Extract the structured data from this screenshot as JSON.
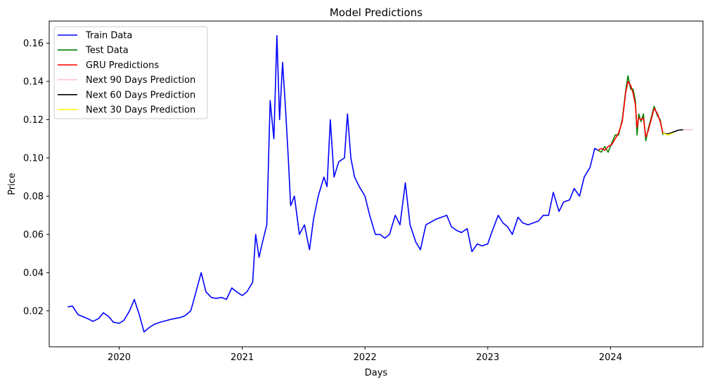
{
  "chart_data": {
    "type": "line",
    "title": "Model Predictions",
    "xlabel": "Days",
    "ylabel": "Price",
    "x_type": "date",
    "xlim": [
      "2019-06-07",
      "2024-10-02"
    ],
    "ylim": [
      0.0012,
      0.1716
    ],
    "x_ticks": [
      "2020-01-01",
      "2021-01-01",
      "2022-01-01",
      "2023-01-01",
      "2024-01-01"
    ],
    "x_tick_labels": [
      "2020",
      "2021",
      "2022",
      "2023",
      "2024"
    ],
    "y_ticks": [
      0.02,
      0.04,
      0.06,
      0.08,
      0.1,
      0.12,
      0.14,
      0.16
    ],
    "y_tick_labels": [
      "0.02",
      "0.04",
      "0.06",
      "0.08",
      "0.10",
      "0.12",
      "0.14",
      "0.16"
    ],
    "legend_position": "top-left",
    "grid": false,
    "series": [
      {
        "name": "Train Data",
        "color": "#0000ff",
        "points": [
          [
            "2019-08-01",
            0.0221
          ],
          [
            "2019-08-15",
            0.0225
          ],
          [
            "2019-09-01",
            0.018
          ],
          [
            "2019-09-15",
            0.017
          ],
          [
            "2019-10-01",
            0.0158
          ],
          [
            "2019-10-15",
            0.0145
          ],
          [
            "2019-11-01",
            0.016
          ],
          [
            "2019-11-15",
            0.019
          ],
          [
            "2019-12-01",
            0.017
          ],
          [
            "2019-12-15",
            0.014
          ],
          [
            "2020-01-01",
            0.0135
          ],
          [
            "2020-01-15",
            0.015
          ],
          [
            "2020-02-01",
            0.02
          ],
          [
            "2020-02-15",
            0.026
          ],
          [
            "2020-03-01",
            0.018
          ],
          [
            "2020-03-15",
            0.009
          ],
          [
            "2020-04-01",
            0.0115
          ],
          [
            "2020-04-15",
            0.013
          ],
          [
            "2020-05-01",
            0.014
          ],
          [
            "2020-06-01",
            0.0155
          ],
          [
            "2020-06-15",
            0.016
          ],
          [
            "2020-07-01",
            0.0165
          ],
          [
            "2020-07-15",
            0.0175
          ],
          [
            "2020-08-01",
            0.02
          ],
          [
            "2020-08-15",
            0.029
          ],
          [
            "2020-09-01",
            0.04
          ],
          [
            "2020-09-15",
            0.03
          ],
          [
            "2020-10-01",
            0.027
          ],
          [
            "2020-10-15",
            0.0265
          ],
          [
            "2020-11-01",
            0.027
          ],
          [
            "2020-11-15",
            0.026
          ],
          [
            "2020-12-01",
            0.032
          ],
          [
            "2020-12-15",
            0.03
          ],
          [
            "2021-01-01",
            0.028
          ],
          [
            "2021-01-15",
            0.03
          ],
          [
            "2021-02-01",
            0.035
          ],
          [
            "2021-02-10",
            0.06
          ],
          [
            "2021-02-20",
            0.048
          ],
          [
            "2021-03-01",
            0.055
          ],
          [
            "2021-03-15",
            0.065
          ],
          [
            "2021-03-25",
            0.13
          ],
          [
            "2021-04-05",
            0.11
          ],
          [
            "2021-04-14",
            0.164
          ],
          [
            "2021-04-22",
            0.12
          ],
          [
            "2021-05-01",
            0.15
          ],
          [
            "2021-05-10",
            0.125
          ],
          [
            "2021-05-18",
            0.1
          ],
          [
            "2021-05-25",
            0.075
          ],
          [
            "2021-06-05",
            0.08
          ],
          [
            "2021-06-20",
            0.06
          ],
          [
            "2021-07-05",
            0.065
          ],
          [
            "2021-07-20",
            0.052
          ],
          [
            "2021-08-01",
            0.068
          ],
          [
            "2021-08-15",
            0.08
          ],
          [
            "2021-09-01",
            0.09
          ],
          [
            "2021-09-10",
            0.085
          ],
          [
            "2021-09-20",
            0.12
          ],
          [
            "2021-10-01",
            0.09
          ],
          [
            "2021-10-15",
            0.098
          ],
          [
            "2021-11-01",
            0.1
          ],
          [
            "2021-11-10",
            0.123
          ],
          [
            "2021-11-20",
            0.1
          ],
          [
            "2021-12-01",
            0.09
          ],
          [
            "2021-12-15",
            0.085
          ],
          [
            "2022-01-01",
            0.08
          ],
          [
            "2022-01-15",
            0.07
          ],
          [
            "2022-02-01",
            0.06
          ],
          [
            "2022-02-15",
            0.06
          ],
          [
            "2022-03-01",
            0.058
          ],
          [
            "2022-03-15",
            0.06
          ],
          [
            "2022-04-01",
            0.07
          ],
          [
            "2022-04-15",
            0.065
          ],
          [
            "2022-05-01",
            0.087
          ],
          [
            "2022-05-15",
            0.065
          ],
          [
            "2022-06-01",
            0.056
          ],
          [
            "2022-06-15",
            0.052
          ],
          [
            "2022-07-01",
            0.065
          ],
          [
            "2022-08-01",
            0.068
          ],
          [
            "2022-09-01",
            0.07
          ],
          [
            "2022-09-15",
            0.064
          ],
          [
            "2022-10-01",
            0.062
          ],
          [
            "2022-10-15",
            0.061
          ],
          [
            "2022-11-01",
            0.063
          ],
          [
            "2022-11-15",
            0.051
          ],
          [
            "2022-12-01",
            0.055
          ],
          [
            "2022-12-15",
            0.054
          ],
          [
            "2023-01-01",
            0.055
          ],
          [
            "2023-01-15",
            0.062
          ],
          [
            "2023-02-01",
            0.07
          ],
          [
            "2023-02-15",
            0.066
          ],
          [
            "2023-03-01",
            0.064
          ],
          [
            "2023-03-15",
            0.06
          ],
          [
            "2023-04-01",
            0.069
          ],
          [
            "2023-04-15",
            0.066
          ],
          [
            "2023-05-01",
            0.065
          ],
          [
            "2023-06-01",
            0.067
          ],
          [
            "2023-06-15",
            0.07
          ],
          [
            "2023-07-01",
            0.07
          ],
          [
            "2023-07-15",
            0.082
          ],
          [
            "2023-08-01",
            0.072
          ],
          [
            "2023-08-15",
            0.077
          ],
          [
            "2023-09-01",
            0.078
          ],
          [
            "2023-09-15",
            0.084
          ],
          [
            "2023-10-01",
            0.08
          ],
          [
            "2023-10-15",
            0.09
          ],
          [
            "2023-11-01",
            0.095
          ],
          [
            "2023-11-15",
            0.105
          ],
          [
            "2023-11-25",
            0.104
          ]
        ]
      },
      {
        "name": "Test Data",
        "color": "#008000",
        "points": [
          [
            "2023-11-25",
            0.104
          ],
          [
            "2023-12-05",
            0.103
          ],
          [
            "2023-12-15",
            0.106
          ],
          [
            "2023-12-25",
            0.103
          ],
          [
            "2024-01-05",
            0.108
          ],
          [
            "2024-01-15",
            0.112
          ],
          [
            "2024-01-25",
            0.112
          ],
          [
            "2024-02-05",
            0.12
          ],
          [
            "2024-02-15",
            0.135
          ],
          [
            "2024-02-22",
            0.143
          ],
          [
            "2024-03-01",
            0.136
          ],
          [
            "2024-03-08",
            0.136
          ],
          [
            "2024-03-15",
            0.13
          ],
          [
            "2024-03-20",
            0.112
          ],
          [
            "2024-03-25",
            0.123
          ],
          [
            "2024-04-01",
            0.119
          ],
          [
            "2024-04-08",
            0.123
          ],
          [
            "2024-04-15",
            0.109
          ],
          [
            "2024-04-22",
            0.115
          ],
          [
            "2024-05-01",
            0.121
          ],
          [
            "2024-05-10",
            0.127
          ],
          [
            "2024-05-20",
            0.122
          ],
          [
            "2024-05-28",
            0.12
          ],
          [
            "2024-06-05",
            0.112
          ]
        ]
      },
      {
        "name": "GRU Predictions",
        "color": "#ff0000",
        "points": [
          [
            "2023-11-25",
            0.104
          ],
          [
            "2023-12-05",
            0.105
          ],
          [
            "2023-12-15",
            0.104
          ],
          [
            "2023-12-25",
            0.106
          ],
          [
            "2024-01-05",
            0.107
          ],
          [
            "2024-01-15",
            0.11
          ],
          [
            "2024-01-25",
            0.113
          ],
          [
            "2024-02-05",
            0.119
          ],
          [
            "2024-02-15",
            0.134
          ],
          [
            "2024-02-22",
            0.14
          ],
          [
            "2024-03-01",
            0.138
          ],
          [
            "2024-03-08",
            0.134
          ],
          [
            "2024-03-15",
            0.128
          ],
          [
            "2024-03-20",
            0.116
          ],
          [
            "2024-03-25",
            0.121
          ],
          [
            "2024-04-01",
            0.12
          ],
          [
            "2024-04-08",
            0.121
          ],
          [
            "2024-04-15",
            0.111
          ],
          [
            "2024-04-22",
            0.114
          ],
          [
            "2024-05-01",
            0.12
          ],
          [
            "2024-05-10",
            0.126
          ],
          [
            "2024-05-20",
            0.123
          ],
          [
            "2024-05-28",
            0.119
          ],
          [
            "2024-06-05",
            0.113
          ]
        ]
      },
      {
        "name": "Next 90 Days Prediction",
        "color": "#ffc0cb",
        "points": [
          [
            "2024-06-05",
            0.113
          ],
          [
            "2024-06-20",
            0.1125
          ],
          [
            "2024-07-05",
            0.1135
          ],
          [
            "2024-07-20",
            0.1145
          ],
          [
            "2024-08-05",
            0.1148
          ],
          [
            "2024-08-20",
            0.1148
          ],
          [
            "2024-09-03",
            0.1148
          ]
        ]
      },
      {
        "name": "Next 60 Days Prediction",
        "color": "#000000",
        "points": [
          [
            "2024-06-05",
            0.113
          ],
          [
            "2024-06-20",
            0.1125
          ],
          [
            "2024-07-05",
            0.1135
          ],
          [
            "2024-07-20",
            0.1145
          ],
          [
            "2024-08-04",
            0.1148
          ]
        ]
      },
      {
        "name": "Next 30 Days Prediction",
        "color": "#ffff00",
        "points": [
          [
            "2024-06-05",
            0.113
          ],
          [
            "2024-06-20",
            0.112
          ],
          [
            "2024-07-05",
            0.113
          ]
        ]
      }
    ]
  }
}
